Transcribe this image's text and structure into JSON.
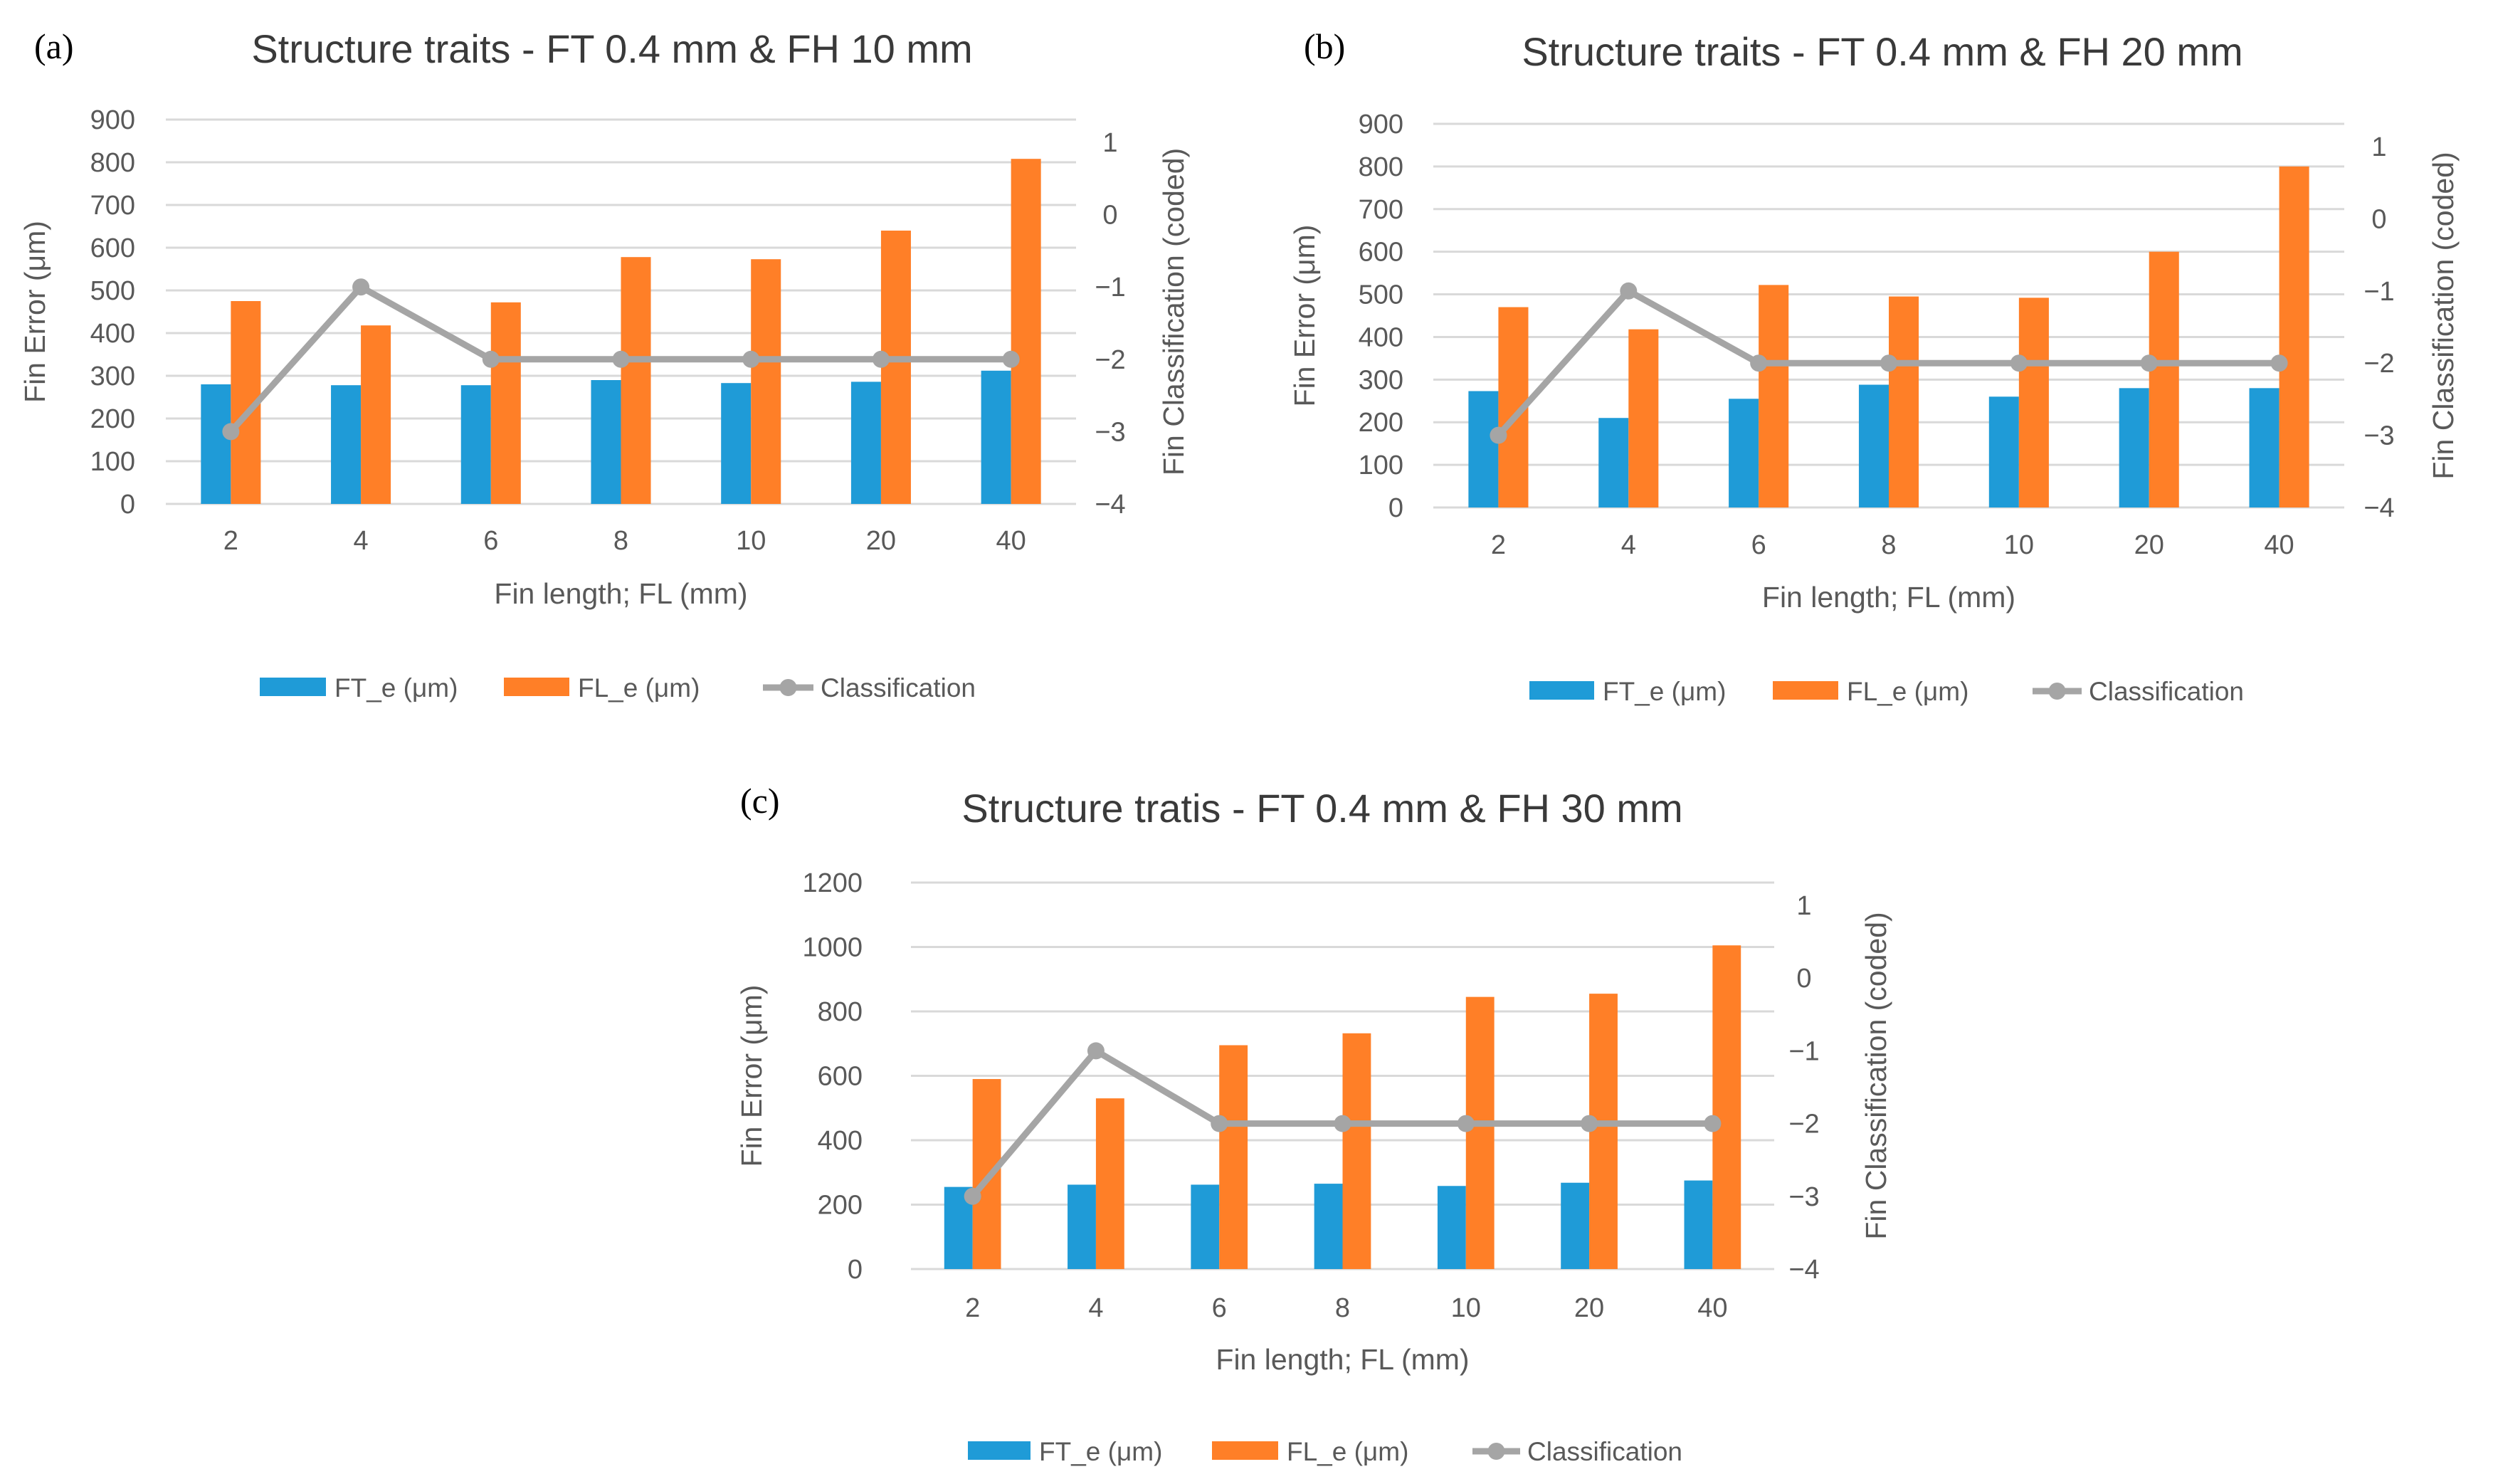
{
  "chart_data": [
    {
      "panel": "(a)",
      "type": "bar",
      "title": "Structure traits - FT 0.4 mm & FH 10 mm",
      "xlabel": "Fin length; FL (mm)",
      "ylabel": "Fin Error (μm)",
      "y2label": "Fin Classification (coded)",
      "categories": [
        "2",
        "4",
        "6",
        "8",
        "10",
        "20",
        "40"
      ],
      "ylim": [
        0,
        900
      ],
      "yticks": [
        "0",
        "100",
        "200",
        "300",
        "400",
        "500",
        "600",
        "700",
        "800",
        "900"
      ],
      "y2lim": [
        -4,
        1
      ],
      "y2ticks": [
        "-4",
        "-3",
        "-2",
        "-1",
        "0",
        "1"
      ],
      "grid": true,
      "legend_position": "bottom",
      "series": [
        {
          "name": "FT_e (μm)",
          "type": "bar",
          "axis": "left",
          "color": "#1f9bd7",
          "values": [
            280,
            278,
            278,
            290,
            283,
            286,
            312
          ]
        },
        {
          "name": "FL_e (μm)",
          "type": "bar",
          "axis": "left",
          "color": "#ff7f27",
          "values": [
            475,
            418,
            472,
            578,
            573,
            640,
            808
          ]
        },
        {
          "name": "Classification",
          "type": "line",
          "axis": "right",
          "color": "#a5a5a5",
          "values": [
            -3,
            -1,
            -2,
            -2,
            -2,
            -2,
            -2
          ]
        }
      ]
    },
    {
      "panel": "(b)",
      "type": "bar",
      "title": "Structure traits - FT 0.4 mm & FH 20 mm",
      "xlabel": "Fin length; FL (mm)",
      "ylabel": "Fin Error  (μm)",
      "y2label": "Fin Classification (coded)",
      "categories": [
        "2",
        "4",
        "6",
        "8",
        "10",
        "20",
        "40"
      ],
      "ylim": [
        0,
        900
      ],
      "yticks": [
        "0",
        "100",
        "200",
        "300",
        "400",
        "500",
        "600",
        "700",
        "800",
        "900"
      ],
      "y2lim": [
        -4,
        1
      ],
      "y2ticks": [
        "-4",
        "-3",
        "-2",
        "-1",
        "0",
        "1"
      ],
      "grid": true,
      "legend_position": "bottom",
      "series": [
        {
          "name": "FT_e (μm)",
          "type": "bar",
          "axis": "left",
          "color": "#1f9bd7",
          "values": [
            273,
            210,
            255,
            288,
            260,
            280,
            280
          ]
        },
        {
          "name": "FL_e (μm)",
          "type": "bar",
          "axis": "left",
          "color": "#ff7f27",
          "values": [
            470,
            418,
            522,
            495,
            492,
            600,
            800
          ]
        },
        {
          "name": "Classification",
          "type": "line",
          "axis": "right",
          "color": "#a5a5a5",
          "values": [
            -3,
            -1,
            -2,
            -2,
            -2,
            -2,
            -2
          ]
        }
      ]
    },
    {
      "panel": "(c)",
      "type": "bar",
      "title": "Structure tratis - FT 0.4 mm & FH 30 mm",
      "xlabel": "Fin length; FL (mm)",
      "ylabel": "Fin Error (μm)",
      "y2label": "Fin Classification (coded)",
      "categories": [
        "2",
        "4",
        "6",
        "8",
        "10",
        "20",
        "40"
      ],
      "ylim": [
        0,
        1200
      ],
      "yticks": [
        "0",
        "200",
        "400",
        "600",
        "800",
        "1000",
        "1200"
      ],
      "y2lim": [
        -4,
        1
      ],
      "y2ticks": [
        "-4",
        "-3",
        "-2",
        "-1",
        "0",
        "1"
      ],
      "grid": true,
      "legend_position": "bottom",
      "series": [
        {
          "name": "FT_e (μm)",
          "type": "bar",
          "axis": "left",
          "color": "#1f9bd7",
          "values": [
            255,
            262,
            262,
            265,
            258,
            268,
            275
          ]
        },
        {
          "name": "FL_e (μm)",
          "type": "bar",
          "axis": "left",
          "color": "#ff7f27",
          "values": [
            590,
            530,
            695,
            732,
            845,
            855,
            1005
          ]
        },
        {
          "name": "Classification",
          "type": "line",
          "axis": "right",
          "color": "#a5a5a5",
          "values": [
            -3,
            -1,
            -2,
            -2,
            -2,
            -2,
            -2
          ]
        }
      ]
    }
  ]
}
